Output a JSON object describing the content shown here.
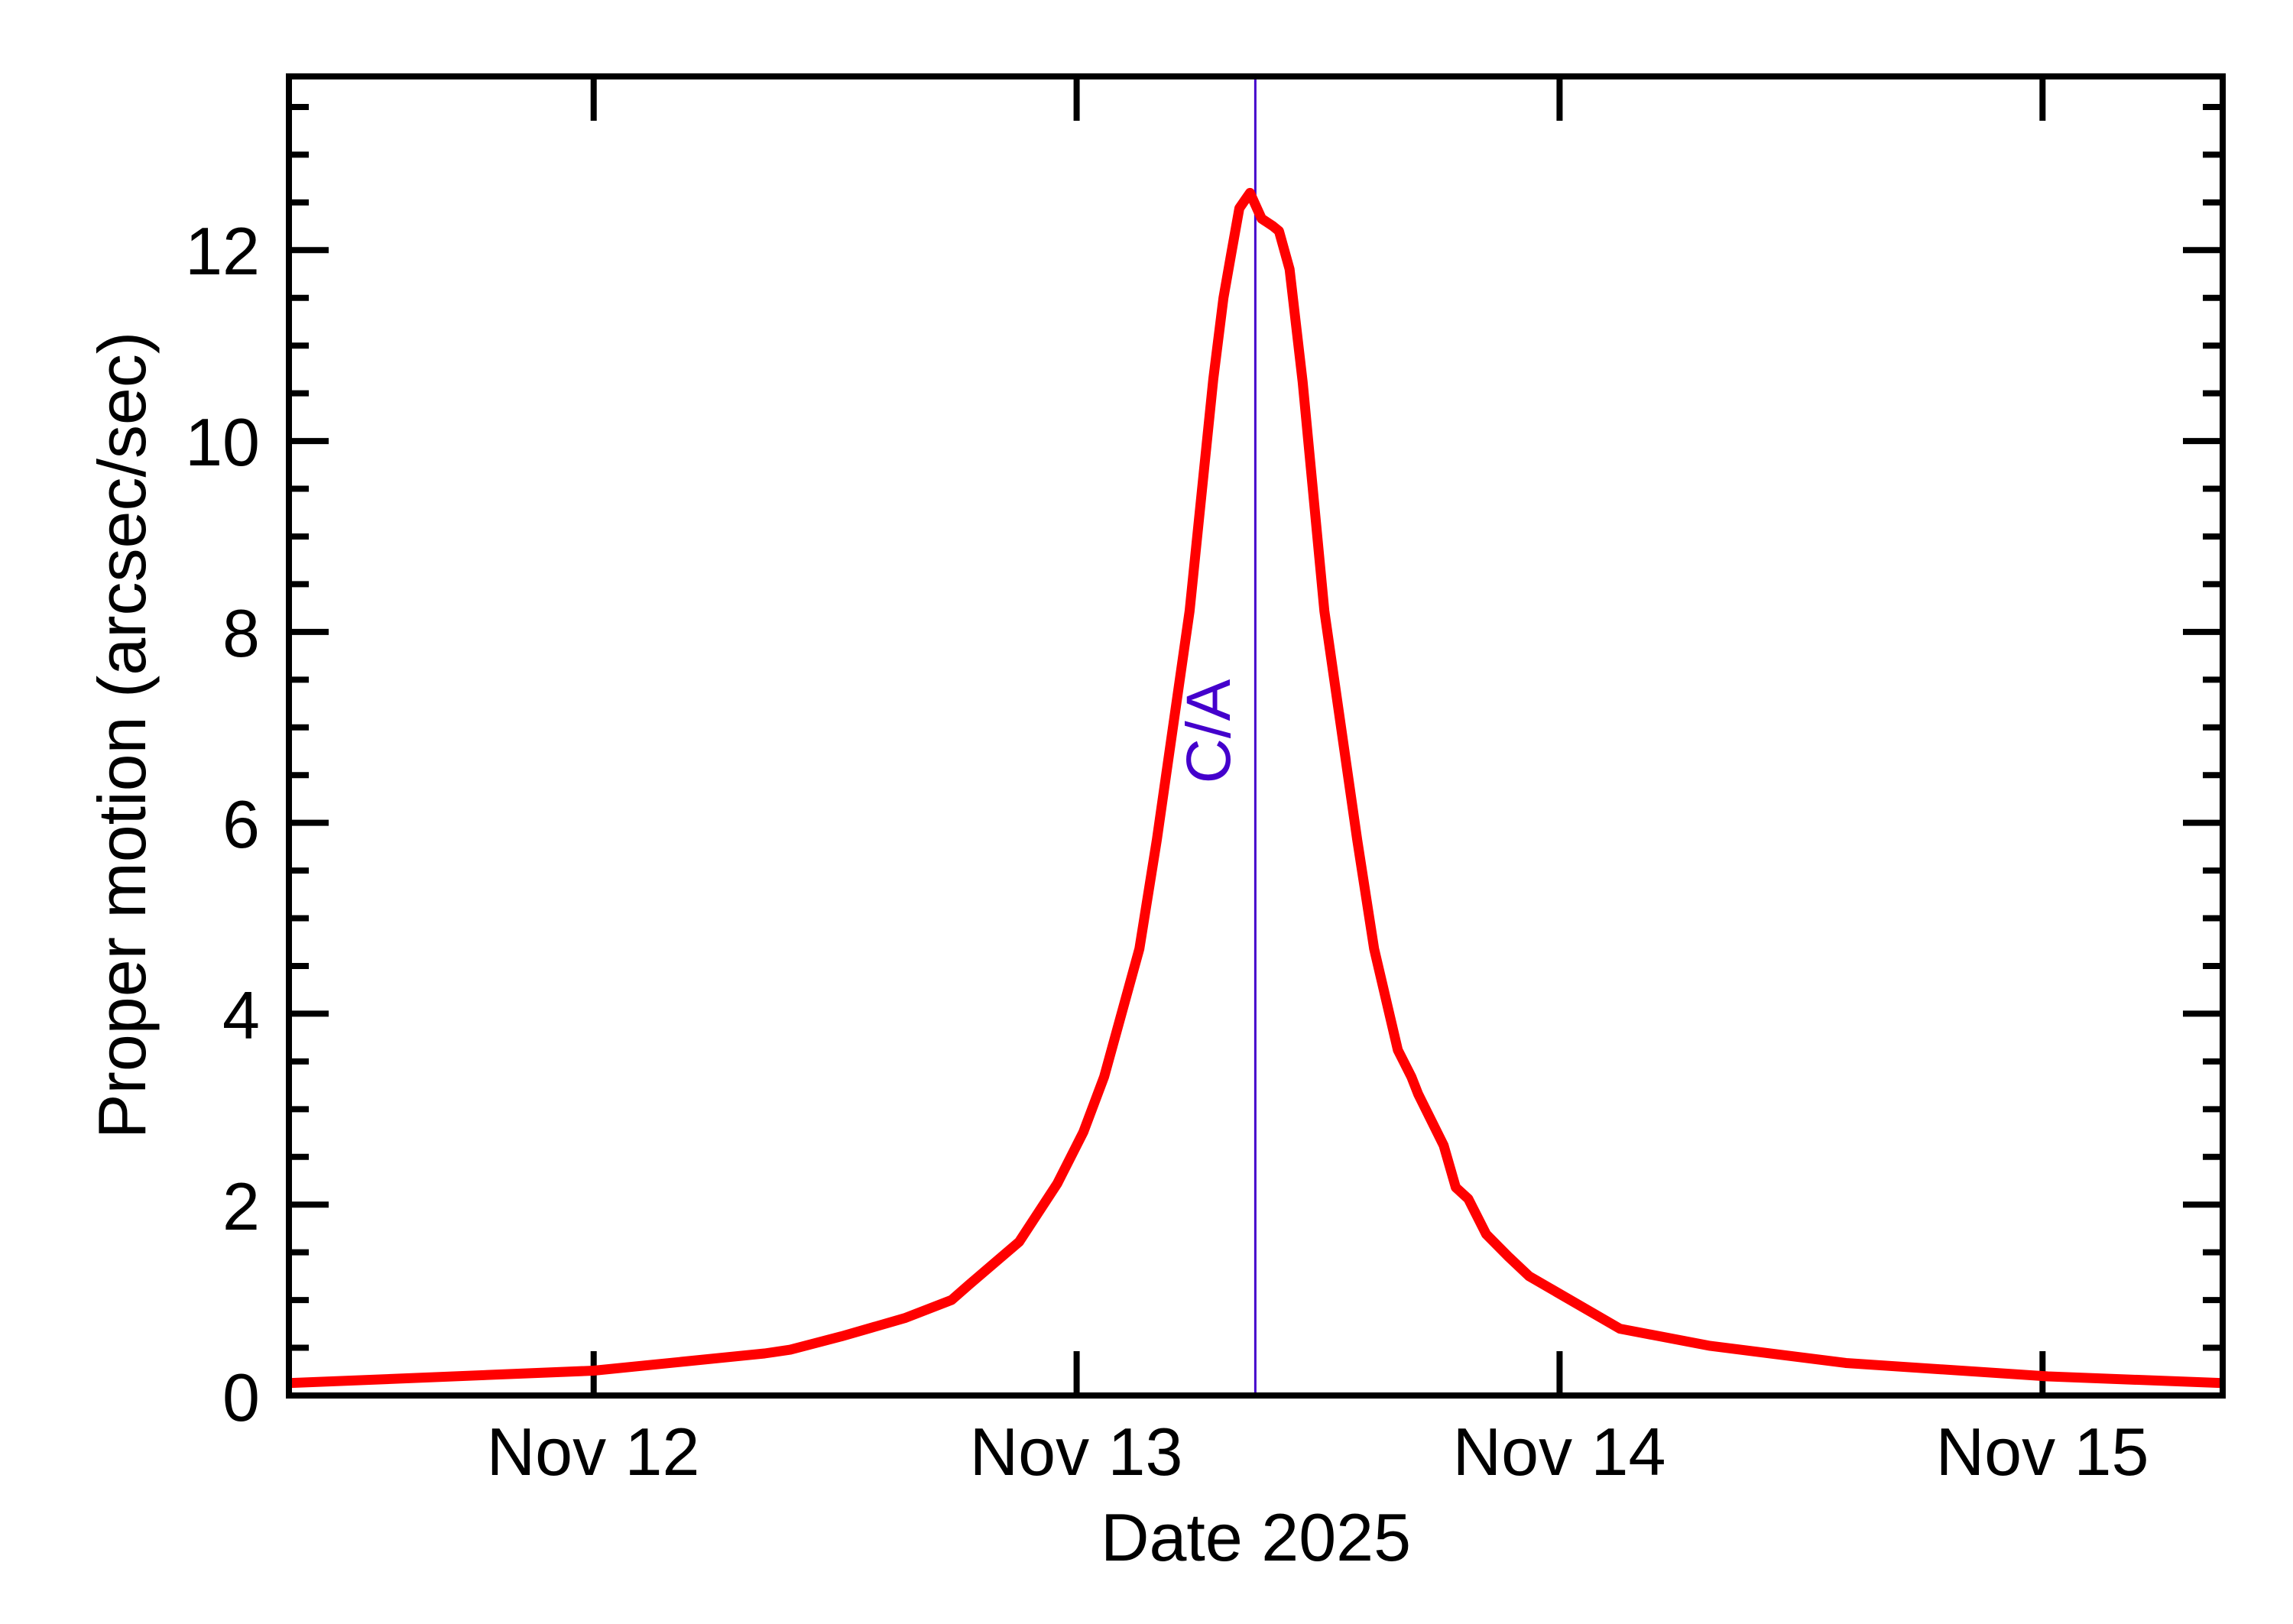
{
  "chart_data": {
    "type": "line",
    "title": "",
    "xlabel": "Date 2025",
    "ylabel": "Proper motion (arcsec/sec)",
    "x_unit": "days since Nov 12 2025 00:00 UTC",
    "xlim": [
      -0.631,
      3.373
    ],
    "ylim": [
      0.0,
      13.82
    ],
    "grid": false,
    "legend": null,
    "x_ticks": [
      {
        "value": 0,
        "label": "Nov 12"
      },
      {
        "value": 1,
        "label": "Nov 13"
      },
      {
        "value": 2,
        "label": "Nov 14"
      },
      {
        "value": 3,
        "label": "Nov 15"
      }
    ],
    "y_ticks": [
      {
        "value": 0,
        "label": "0"
      },
      {
        "value": 2,
        "label": "2"
      },
      {
        "value": 4,
        "label": "4"
      },
      {
        "value": 6,
        "label": "6"
      },
      {
        "value": 8,
        "label": "8"
      },
      {
        "value": 10,
        "label": "10"
      },
      {
        "value": 12,
        "label": "12"
      }
    ],
    "y_minor_step": 0.5,
    "series": [
      {
        "name": "Proper motion",
        "color": "#ff0000",
        "x": [
          -0.631,
          0.0,
          0.354,
          0.407,
          0.513,
          0.644,
          0.741,
          0.777,
          0.881,
          0.96,
          1.014,
          1.057,
          1.13,
          1.166,
          1.234,
          1.283,
          1.304,
          1.32,
          1.337,
          1.359,
          1.383,
          1.407,
          1.419,
          1.441,
          1.468,
          1.513,
          1.581,
          1.616,
          1.665,
          1.693,
          1.707,
          1.76,
          1.785,
          1.811,
          1.848,
          1.895,
          1.937,
          2.125,
          2.312,
          2.593,
          3.011,
          3.373
        ],
        "values": [
          0.13,
          0.26,
          0.44,
          0.48,
          0.62,
          0.81,
          1.0,
          1.16,
          1.61,
          2.22,
          2.76,
          3.34,
          4.68,
          5.82,
          8.22,
          10.65,
          11.5,
          11.96,
          12.44,
          12.6,
          12.33,
          12.25,
          12.2,
          11.8,
          10.62,
          8.22,
          5.82,
          4.68,
          3.62,
          3.34,
          3.16,
          2.62,
          2.18,
          2.06,
          1.69,
          1.45,
          1.25,
          0.7,
          0.52,
          0.34,
          0.2,
          0.13
        ]
      }
    ],
    "annotations": [
      {
        "type": "vline",
        "x": 1.37,
        "label": "C/A",
        "color": "#4400cc"
      }
    ]
  },
  "labels": {
    "xlabel": "Date 2025",
    "ylabel": "Proper motion (arcsec/sec)",
    "ca": "C/A",
    "x_ticks": [
      "Nov 12",
      "Nov 13",
      "Nov 14",
      "Nov 15"
    ],
    "y_ticks": [
      "0",
      "2",
      "4",
      "6",
      "8",
      "10",
      "12"
    ]
  },
  "colors": {
    "curve": "#ff0000",
    "ca_line": "#4400cc",
    "axes": "#000000",
    "background": "#ffffff"
  }
}
